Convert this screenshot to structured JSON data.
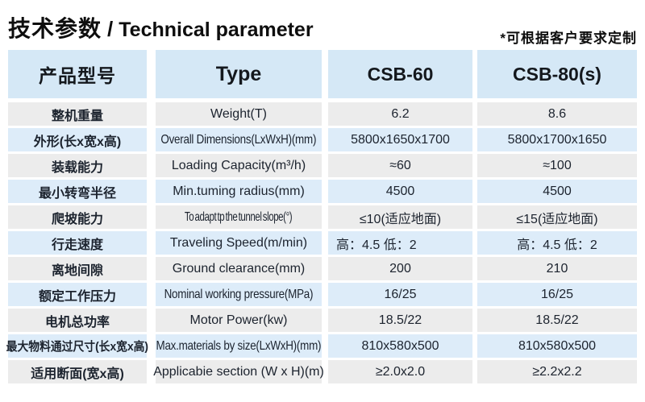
{
  "page": {
    "title_cn": "技术参数",
    "title_divider": "/",
    "title_en": "Technical parameter",
    "note": "*可根据客户要求定制"
  },
  "colors": {
    "header_bg": "#d5e8f6",
    "row_blue": "#ddecf9",
    "row_gray": "#ececec",
    "text": "#1c232e"
  },
  "table": {
    "headers": {
      "col1": "产品型号",
      "col2": "Type",
      "col3": "CSB-60",
      "col4": "CSB-80(s)"
    },
    "rows": [
      {
        "cn": "整机重量",
        "en": "Weight(T)",
        "csb60": "6.2",
        "csb80": "8.6"
      },
      {
        "cn": "外形(长x宽x高)",
        "en": "Overall Dimensions(LxWxH)(mm)",
        "csb60": "5800x1650x1700",
        "csb80": "5800x1700x1650"
      },
      {
        "cn": "装载能力",
        "en": "Loading Capacity(m³/h)",
        "csb60": "≈60",
        "csb80": "≈100"
      },
      {
        "cn": "最小转弯半径",
        "en": "Min.tuming radius(mm)",
        "csb60": "4500",
        "csb80": "4500"
      },
      {
        "cn": "爬坡能力",
        "en": "To adapt tp the tunnel slope(°)",
        "csb60": "≤10(适应地面)",
        "csb80": "≤15(适应地面)"
      },
      {
        "cn": "行走速度",
        "en": "Traveling Speed(m/min)",
        "csb60": "高：4.5 低：2",
        "csb80": "高：4.5 低：2"
      },
      {
        "cn": "离地间隙",
        "en": "Ground clearance(mm)",
        "csb60": "200",
        "csb80": "210"
      },
      {
        "cn": "额定工作压力",
        "en": "Nominal working pressure(MPa)",
        "csb60": "16/25",
        "csb80": "16/25"
      },
      {
        "cn": "电机总功率",
        "en": "Motor Power(kw)",
        "csb60": "18.5/22",
        "csb80": "18.5/22"
      },
      {
        "cn": "最大物料通过尺寸(长x宽x高)",
        "en": "Max.materials by size(LxWxH)(mm)",
        "csb60": "810x580x500",
        "csb80": "810x580x500"
      },
      {
        "cn": "适用断面(宽x高)",
        "en": "Applicabie section (W x H)(m)",
        "csb60": "≥2.0x2.0",
        "csb80": "≥2.2x2.2"
      }
    ]
  }
}
